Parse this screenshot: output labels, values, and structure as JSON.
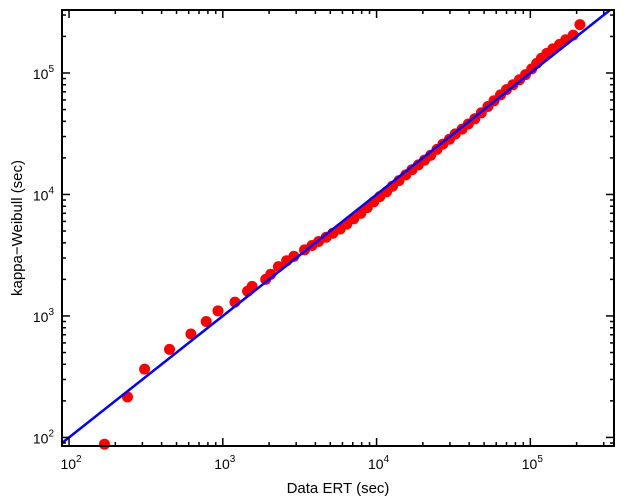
{
  "chart_data": {
    "type": "scatter",
    "xlabel": "Data ERT (sec)",
    "ylabel": "kappa−Weibull (sec)",
    "xscale": "log",
    "yscale": "log",
    "xlim": [
      90,
      350000
    ],
    "ylim": [
      85,
      330000
    ],
    "grid": false,
    "x_ticks": [
      100,
      1000,
      10000,
      100000
    ],
    "y_ticks": [
      100,
      1000,
      10000,
      100000
    ],
    "tick_labels": [
      {
        "base": "10",
        "exp": "2"
      },
      {
        "base": "10",
        "exp": "3"
      },
      {
        "base": "10",
        "exp": "4"
      },
      {
        "base": "10",
        "exp": "5"
      }
    ],
    "reference_line": {
      "type": "y=x",
      "color": "#0000ff"
    },
    "marker_color": "#ff0000",
    "points": [
      [
        170,
        88
      ],
      [
        240,
        215
      ],
      [
        310,
        365
      ],
      [
        450,
        530
      ],
      [
        620,
        710
      ],
      [
        780,
        900
      ],
      [
        930,
        1100
      ],
      [
        1200,
        1300
      ],
      [
        1450,
        1600
      ],
      [
        1550,
        1750
      ],
      [
        1900,
        2000
      ],
      [
        2050,
        2200
      ],
      [
        2300,
        2550
      ],
      [
        2600,
        2850
      ],
      [
        2900,
        3100
      ],
      [
        3400,
        3500
      ],
      [
        3800,
        3800
      ],
      [
        4200,
        4100
      ],
      [
        4700,
        4450
      ],
      [
        5200,
        4800
      ],
      [
        5800,
        5200
      ],
      [
        6400,
        5700
      ],
      [
        7100,
        6300
      ],
      [
        7900,
        7000
      ],
      [
        8700,
        7800
      ],
      [
        9600,
        8700
      ],
      [
        10500,
        9600
      ],
      [
        11600,
        10500
      ],
      [
        12700,
        11700
      ],
      [
        14000,
        13000
      ],
      [
        15500,
        14500
      ],
      [
        17000,
        16000
      ],
      [
        18700,
        17500
      ],
      [
        20500,
        19200
      ],
      [
        22500,
        21000
      ],
      [
        24700,
        23500
      ],
      [
        27000,
        26000
      ],
      [
        29800,
        28500
      ],
      [
        32500,
        31500
      ],
      [
        36000,
        34500
      ],
      [
        39500,
        38000
      ],
      [
        43500,
        42000
      ],
      [
        48000,
        47000
      ],
      [
        53000,
        53000
      ],
      [
        58000,
        59000
      ],
      [
        64000,
        66000
      ],
      [
        70000,
        73000
      ],
      [
        77000,
        80000
      ],
      [
        85000,
        88000
      ],
      [
        93000,
        97000
      ],
      [
        102000,
        108000
      ],
      [
        110000,
        120000
      ],
      [
        118000,
        132000
      ],
      [
        128000,
        145000
      ],
      [
        140000,
        158000
      ],
      [
        155000,
        172000
      ],
      [
        170000,
        188000
      ],
      [
        190000,
        205000
      ],
      [
        210000,
        250000
      ]
    ]
  }
}
